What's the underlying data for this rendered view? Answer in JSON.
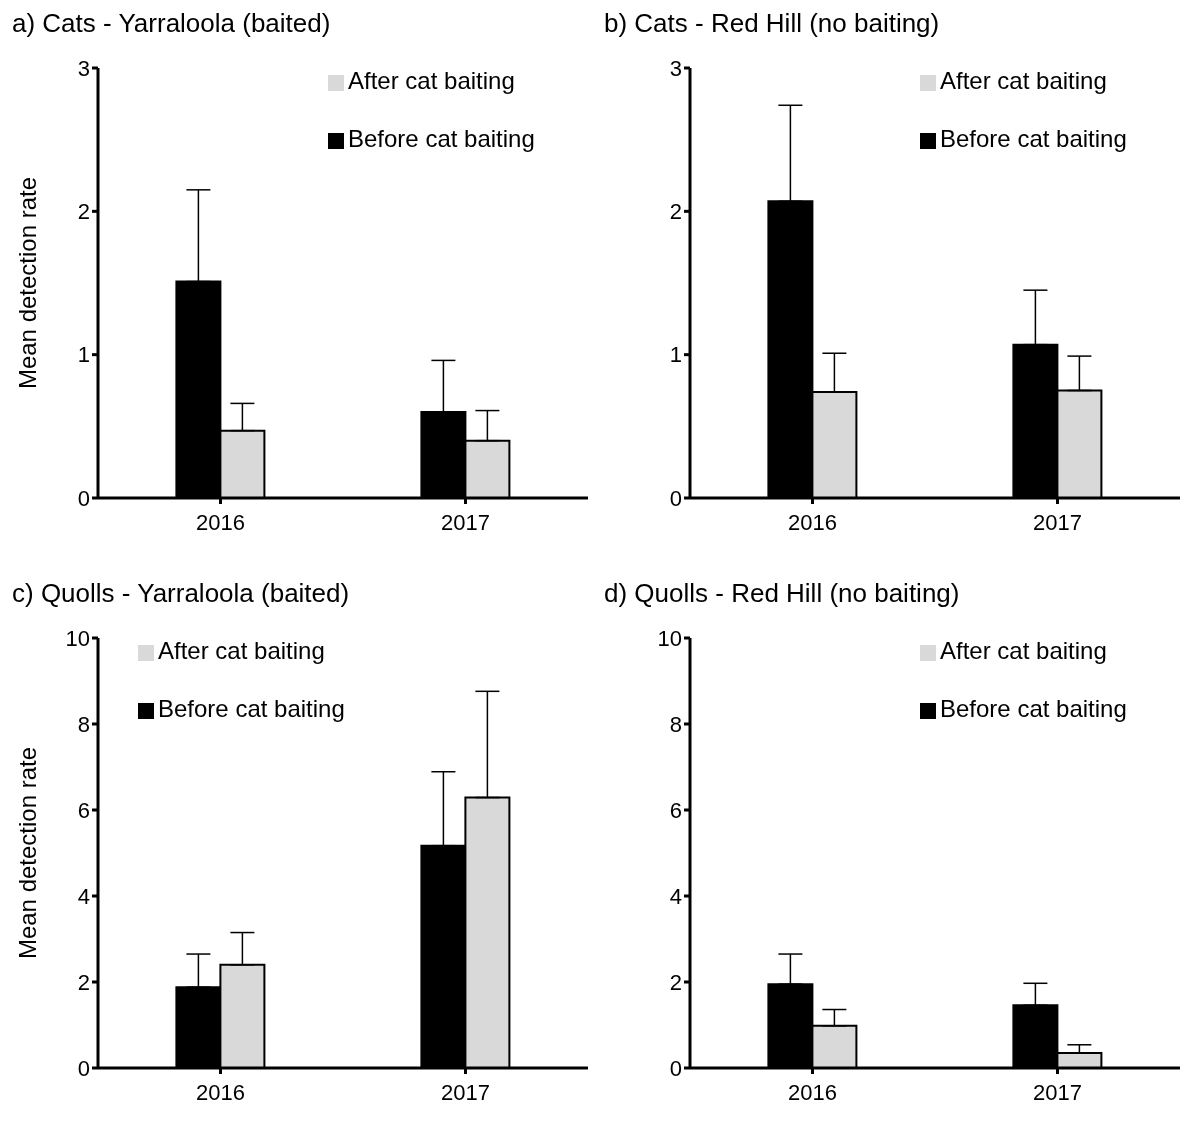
{
  "chart_data": [
    {
      "type": "bar",
      "title": "a) Cats - Yarraloola (baited)",
      "ylabel": "Mean detection rate",
      "categories": [
        "2016",
        "2017"
      ],
      "ylim": [
        0,
        3
      ],
      "yticks": [
        0,
        1,
        2,
        3
      ],
      "legend": "top right",
      "series": [
        {
          "name": "Before cat baiting",
          "color": "#000000",
          "values": [
            1.51,
            0.6
          ],
          "errors": [
            [
              1.51,
              2.15
            ],
            [
              0.6,
              0.96
            ]
          ]
        },
        {
          "name": "After cat baiting",
          "color": "#d9d9d9",
          "values": [
            0.47,
            0.4
          ],
          "errors": [
            [
              0.47,
              0.66
            ],
            [
              0.4,
              0.61
            ]
          ]
        }
      ]
    },
    {
      "type": "bar",
      "title": "b) Cats - Red Hill (no baiting)",
      "categories": [
        "2016",
        "2017"
      ],
      "ylim": [
        0,
        3
      ],
      "yticks": [
        0,
        1,
        2,
        3
      ],
      "legend": "top right",
      "series": [
        {
          "name": "Before cat baiting",
          "color": "#000000",
          "values": [
            2.07,
            1.07
          ],
          "errors": [
            [
              2.07,
              2.74
            ],
            [
              1.07,
              1.45
            ]
          ]
        },
        {
          "name": "After cat baiting",
          "color": "#d9d9d9",
          "values": [
            0.74,
            0.75
          ],
          "errors": [
            [
              0.74,
              1.01
            ],
            [
              0.75,
              0.99
            ]
          ]
        }
      ]
    },
    {
      "type": "bar",
      "title": "c) Quolls - Yarraloola (baited)",
      "ylabel": "Mean detection rate",
      "categories": [
        "2016",
        "2017"
      ],
      "ylim": [
        0,
        10
      ],
      "yticks": [
        0,
        2,
        4,
        6,
        8,
        10
      ],
      "legend": "top left",
      "series": [
        {
          "name": "Before cat baiting",
          "color": "#000000",
          "values": [
            1.88,
            5.17
          ],
          "errors": [
            [
              1.88,
              2.65
            ],
            [
              5.17,
              6.89
            ]
          ]
        },
        {
          "name": "After cat baiting",
          "color": "#d9d9d9",
          "values": [
            2.4,
            6.29
          ],
          "errors": [
            [
              2.4,
              3.15
            ],
            [
              6.29,
              8.76
            ]
          ]
        }
      ]
    },
    {
      "type": "bar",
      "title": "d) Quolls - Red Hill (no baiting)",
      "categories": [
        "2016",
        "2017"
      ],
      "ylim": [
        0,
        10
      ],
      "yticks": [
        0,
        2,
        4,
        6,
        8,
        10
      ],
      "legend": "top right",
      "series": [
        {
          "name": "Before cat baiting",
          "color": "#000000",
          "values": [
            1.95,
            1.46
          ],
          "errors": [
            [
              1.95,
              2.65
            ],
            [
              1.46,
              1.97
            ]
          ]
        },
        {
          "name": "After cat baiting",
          "color": "#d9d9d9",
          "values": [
            0.98,
            0.35
          ],
          "errors": [
            [
              0.98,
              1.36
            ],
            [
              0.35,
              0.54
            ]
          ]
        }
      ]
    }
  ]
}
